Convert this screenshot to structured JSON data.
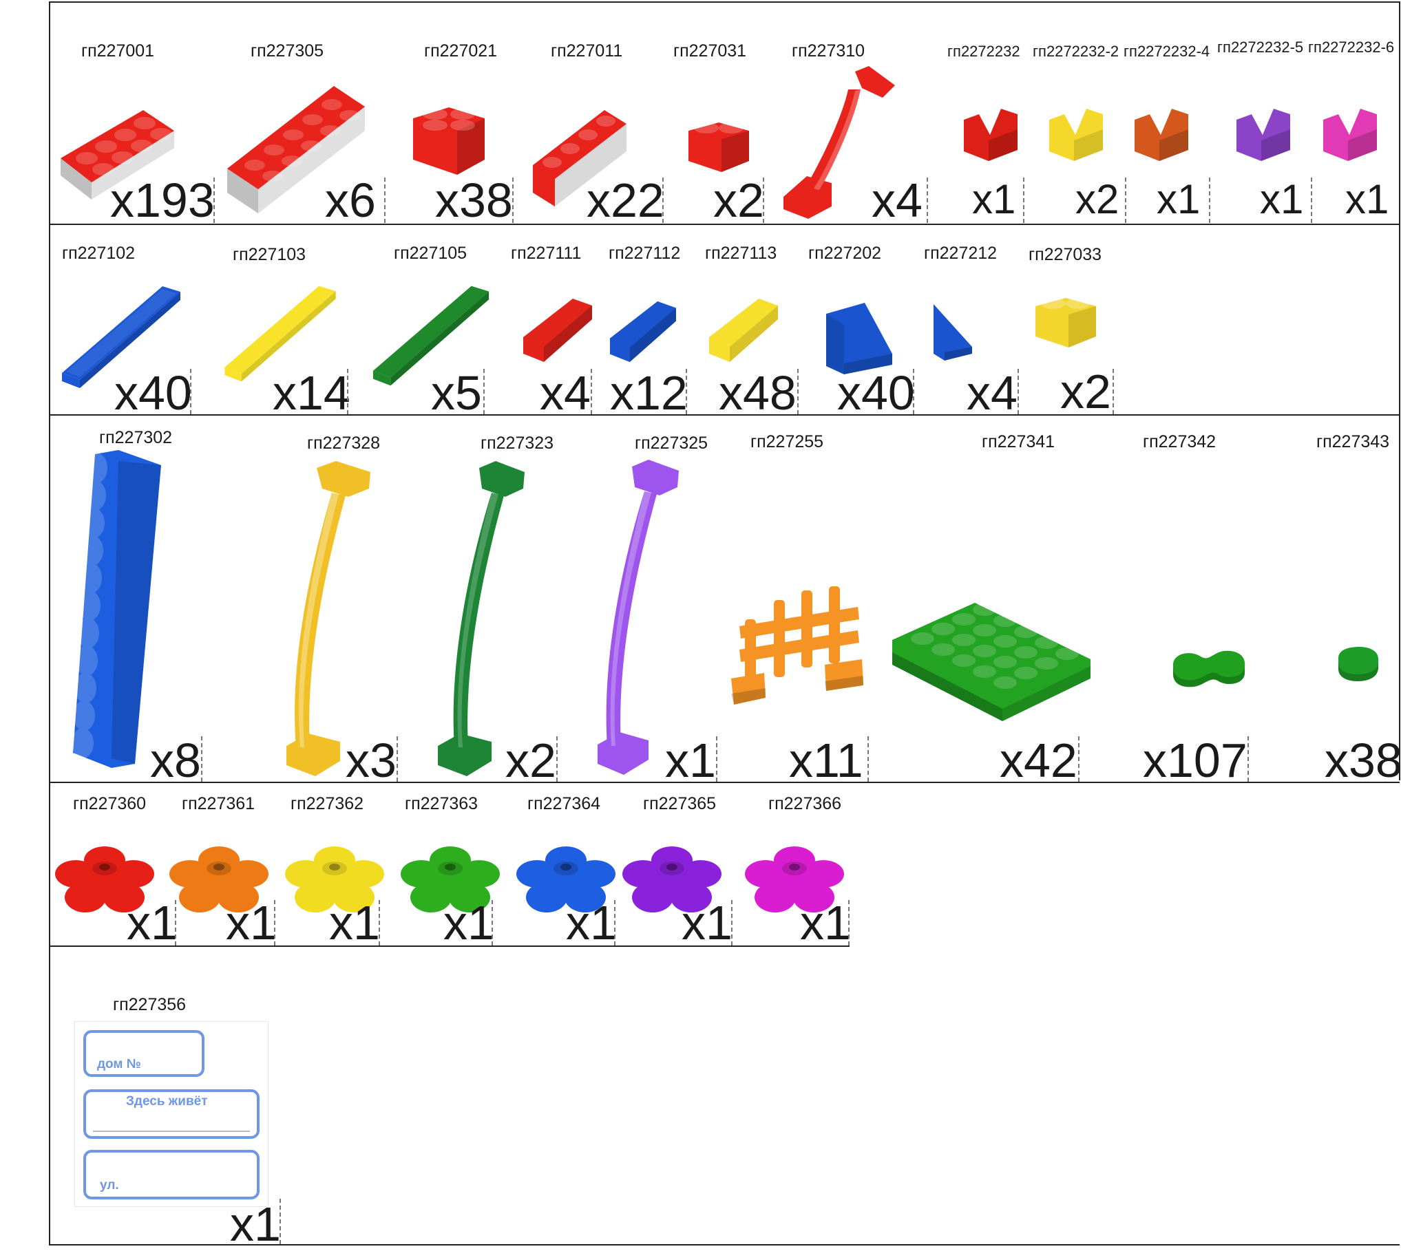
{
  "rows": [
    {
      "items": [
        {
          "code": "гп227001",
          "qty": "x193",
          "color": "#e8231b",
          "icon": "brick-2x4-icon"
        },
        {
          "code": "гп227305",
          "qty": "x6",
          "color": "#e8231b",
          "icon": "brick-2x6-icon"
        },
        {
          "code": "гп227021",
          "qty": "x38",
          "color": "#e8231b",
          "icon": "brick-2x2-icon"
        },
        {
          "code": "гп227011",
          "qty": "x22",
          "color": "#e8231b",
          "icon": "brick-1x4-icon"
        },
        {
          "code": "гп227031",
          "qty": "x2",
          "color": "#e8231b",
          "icon": "brick-1x2-icon"
        },
        {
          "code": "гп227310",
          "qty": "x4",
          "color": "#e8231b",
          "icon": "curved-arch-icon"
        },
        {
          "code": "гп2272232",
          "qty": "x1",
          "color": "#dd2017",
          "icon": "v-notch-block-icon"
        },
        {
          "code": "гп2272232-2",
          "qty": "x2",
          "color": "#f4d92c",
          "icon": "v-notch-block-icon"
        },
        {
          "code": "гп2272232-4",
          "qty": "x1",
          "color": "#d4581e",
          "icon": "v-notch-block-icon"
        },
        {
          "code": "гп2272232-5",
          "qty": "x1",
          "color": "#8b43c8",
          "icon": "v-notch-block-icon"
        },
        {
          "code": "гп2272232-6",
          "qty": "x1",
          "color": "#e23ab4",
          "icon": "v-notch-block-icon"
        }
      ]
    },
    {
      "items": [
        {
          "code": "гп227102",
          "qty": "x40",
          "color": "#1c58d6",
          "icon": "flat-plate-icon"
        },
        {
          "code": "гп227103",
          "qty": "x14",
          "color": "#f8e32a",
          "icon": "flat-plate-icon"
        },
        {
          "code": "гп227105",
          "qty": "x5",
          "color": "#1f8a2c",
          "icon": "flat-plate-icon"
        },
        {
          "code": "гп227111",
          "qty": "x4",
          "color": "#e2241b",
          "icon": "small-tile-icon"
        },
        {
          "code": "гп227112",
          "qty": "x12",
          "color": "#1b54cf",
          "icon": "small-tile-icon"
        },
        {
          "code": "гп227113",
          "qty": "x48",
          "color": "#f7df2e",
          "icon": "small-tile-icon"
        },
        {
          "code": "гп227202",
          "qty": "x40",
          "color": "#1a55cf",
          "icon": "slope-block-icon"
        },
        {
          "code": "гп227212",
          "qty": "x4",
          "color": "#1a55cf",
          "icon": "small-slope-icon"
        },
        {
          "code": "гп227033",
          "qty": "x2",
          "color": "#f4d52b",
          "icon": "brick-1x2-icon"
        }
      ]
    },
    {
      "items": [
        {
          "code": "гп227302",
          "qty": "x8",
          "color": "#1c5ee0",
          "icon": "tall-column-icon"
        },
        {
          "code": "гп227328",
          "qty": "x3",
          "color": "#f0c026",
          "icon": "flexible-rod-icon"
        },
        {
          "code": "гп227323",
          "qty": "x2",
          "color": "#1e8537",
          "icon": "flexible-rod-icon"
        },
        {
          "code": "гп227325",
          "qty": "x1",
          "color": "#9d55ee",
          "icon": "flexible-rod-icon"
        },
        {
          "code": "гп227255",
          "qty": "x11",
          "color": "#f59425",
          "icon": "fence-icon"
        },
        {
          "code": "гп227341",
          "qty": "x42",
          "color": "#22a322",
          "icon": "base-plate-icon"
        },
        {
          "code": "гп227342",
          "qty": "x107",
          "color": "#1fa01f",
          "icon": "double-stud-icon"
        },
        {
          "code": "гп227343",
          "qty": "x38",
          "color": "#1e9c28",
          "icon": "round-tile-icon"
        }
      ]
    },
    {
      "items": [
        {
          "code": "гп227360",
          "qty": "x1",
          "color": "#e62017",
          "icon": "flower-icon"
        },
        {
          "code": "гп227361",
          "qty": "x1",
          "color": "#ee7a15",
          "icon": "flower-icon"
        },
        {
          "code": "гп227362",
          "qty": "x1",
          "color": "#f2dc22",
          "icon": "flower-icon"
        },
        {
          "code": "гп227363",
          "qty": "x1",
          "color": "#2dae1e",
          "icon": "flower-icon"
        },
        {
          "code": "гп227364",
          "qty": "x1",
          "color": "#1d5fe0",
          "icon": "flower-icon"
        },
        {
          "code": "гп227365",
          "qty": "x1",
          "color": "#8a22dc",
          "icon": "flower-icon"
        },
        {
          "code": "гп227366",
          "qty": "x1",
          "color": "#d81ed0",
          "icon": "flower-icon"
        }
      ]
    },
    {
      "items": [
        {
          "code": "гп227356",
          "qty": "x1",
          "color": "#6f97e6",
          "icon": "address-sign-card-icon"
        }
      ]
    }
  ],
  "sign_card": {
    "house_label": "дом №",
    "lives_label": "Здесь живёт",
    "street_label": "ул."
  }
}
